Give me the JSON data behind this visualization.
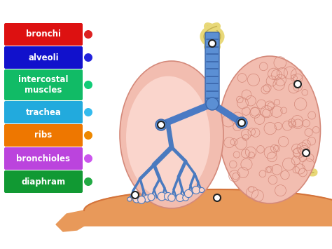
{
  "labels": [
    "bronchi",
    "alveoli",
    "intercostal\nmuscles",
    "trachea",
    "ribs",
    "bronchioles",
    "diaphram"
  ],
  "colors": [
    "#dd1111",
    "#1111cc",
    "#11bb66",
    "#22aadd",
    "#ee7700",
    "#bb44dd",
    "#119933"
  ],
  "dot_colors": [
    "#dd2222",
    "#2222dd",
    "#11cc77",
    "#33bbee",
    "#ee8800",
    "#cc55ee",
    "#22aa44"
  ],
  "background_color": "#ffffff",
  "label_text_color": "#ffffff",
  "label_fontsize": 8.5,
  "label_fontweight": "bold",
  "fig_width": 4.74,
  "fig_height": 3.55,
  "dpi": 100
}
